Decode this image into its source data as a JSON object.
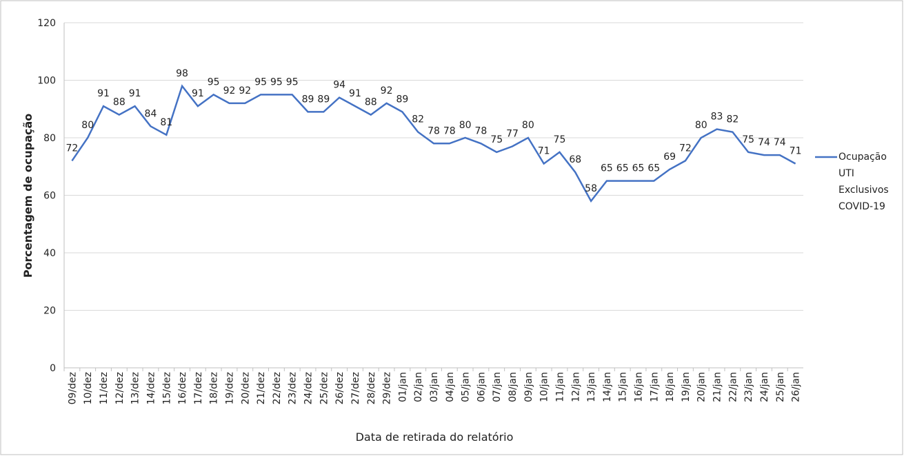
{
  "chart_data": {
    "type": "line",
    "x_label": "Data de retirada do relatório",
    "y_label": "Porcentagem de ocupação",
    "categories": [
      "09/dez",
      "10/dez",
      "11/dez",
      "12/dez",
      "13/dez",
      "14/dez",
      "15/dez",
      "16/dez",
      "17/dez",
      "18/dez",
      "19/dez",
      "20/dez",
      "21/dez",
      "22/dez",
      "23/dez",
      "24/dez",
      "25/dez",
      "26/dez",
      "27/dez",
      "28/dez",
      "29/dez",
      "01/jan",
      "02/jan",
      "03/jan",
      "04/jan",
      "05/jan",
      "06/jan",
      "07/jan",
      "08/jan",
      "09/jan",
      "10/jan",
      "11/jan",
      "12/jan",
      "13/jan",
      "14/jan",
      "15/jan",
      "16/jan",
      "17/jan",
      "18/jan",
      "19/jan",
      "20/jan",
      "21/jan",
      "22/jan",
      "23/jan",
      "24/jan",
      "25/jan",
      "26/jan"
    ],
    "series": [
      {
        "name": "Ocupação UTI Exclusivos COVID-19",
        "color": "#4472c4",
        "values": [
          72,
          80,
          91,
          88,
          91,
          84,
          81,
          98,
          91,
          95,
          92,
          92,
          95,
          95,
          95,
          89,
          89,
          94,
          91,
          88,
          92,
          89,
          82,
          78,
          78,
          80,
          78,
          75,
          77,
          80,
          71,
          75,
          68,
          58,
          65,
          65,
          65,
          65,
          69,
          72,
          80,
          83,
          82,
          75,
          74,
          74,
          71
        ]
      }
    ],
    "ylim": [
      0,
      120
    ],
    "yticks": [
      0,
      20,
      40,
      60,
      80,
      100,
      120
    ],
    "grid": true,
    "legend": "right"
  }
}
